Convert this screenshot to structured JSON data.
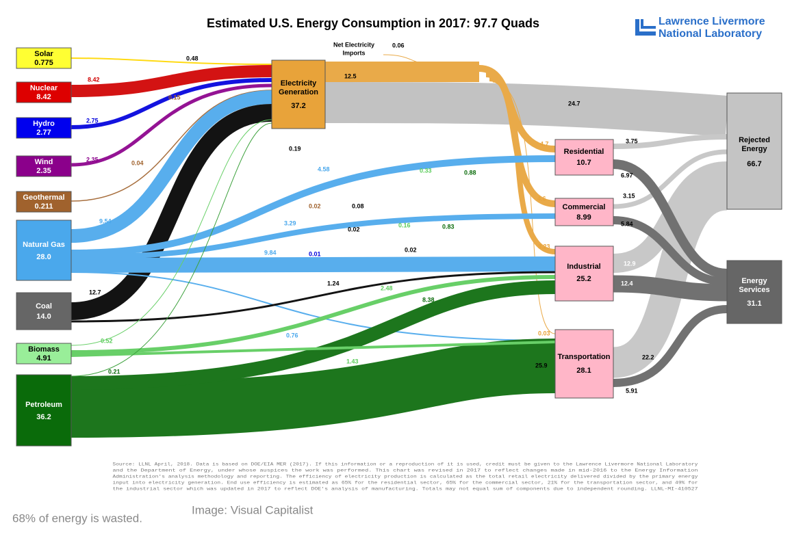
{
  "title": "Estimated U.S. Energy Consumption in 2017: 97.7 Quads",
  "logo": [
    "Lawrence Livermore",
    "National Laboratory"
  ],
  "sources": [
    {
      "name": "Solar",
      "value": "0.775"
    },
    {
      "name": "Nuclear",
      "value": "8.42"
    },
    {
      "name": "Hydro",
      "value": "2.77"
    },
    {
      "name": "Wind",
      "value": "2.35"
    },
    {
      "name": "Geothermal",
      "value": "0.211"
    },
    {
      "name": "Natural Gas",
      "value": "28.0"
    },
    {
      "name": "Coal",
      "value": "14.0"
    },
    {
      "name": "Biomass",
      "value": "4.91"
    },
    {
      "name": "Petroleum",
      "value": "36.2"
    }
  ],
  "electricity": {
    "name": [
      "Electricity",
      "Generation"
    ],
    "value": "37.2"
  },
  "imports": {
    "name": [
      "Net Electricity",
      "Imports"
    ],
    "value": "0.06"
  },
  "sectors": [
    {
      "name": "Residential",
      "value": "10.7"
    },
    {
      "name": "Commercial",
      "value": "8.99"
    },
    {
      "name": "Industrial",
      "value": "25.2"
    },
    {
      "name": "Transportation",
      "value": "28.1"
    }
  ],
  "outputs": [
    {
      "name": [
        "Rejected",
        "Energy"
      ],
      "value": "66.7"
    },
    {
      "name": [
        "Energy",
        "Services"
      ],
      "value": "31.1"
    }
  ],
  "flow_labels": [
    "0.48",
    "8.42",
    "2.75",
    "2.35",
    "0.15",
    "0.04",
    "9.54",
    "12.7",
    "0.52",
    "0.21",
    "12.5",
    "24.7",
    "0.19",
    "4.58",
    "0.33",
    "0.88",
    "4.7",
    "3.75",
    "6.97",
    "0.02",
    "0.08",
    "0.02",
    "3.29",
    "0.16",
    "0.83",
    "4.6",
    "3.15",
    "5.84",
    "9.84",
    "0.01",
    "0.02",
    "3.23",
    "12.9",
    "1.24",
    "2.48",
    "8.38",
    "12.4",
    "0.76",
    "0.03",
    "1.43",
    "25.9",
    "22.2",
    "5.91"
  ],
  "source_note": [
    "Source: LLNL April, 2018. Data is based on DOE/EIA MER (2017). If this information or a reproduction of it is used, credit must be given to the Lawrence Livermore National Laboratory",
    "and the Department of Energy, under whose auspices the work was performed. This chart was revised in 2017 to reflect changes made in mid-2016 to the Energy Information",
    "Administration's analysis methodology and reporting. The efficiency of electricity production is calculated as the total retail electricity delivered divided by the primary energy",
    "input into electricity generation. End use efficiency is estimated as 65% for the residential sector, 65% for the commercial sector, 21% for the transportation sector, and 49% for",
    "the industrial sector which was updated in 2017 to reflect DOE's analysis of manufacturing. Totals may not equal sum of components due to independent rounding. LLNL-MI-410527"
  ],
  "caption": "68% of energy is wasted.",
  "credit": "Image: Visual Capitalist"
}
